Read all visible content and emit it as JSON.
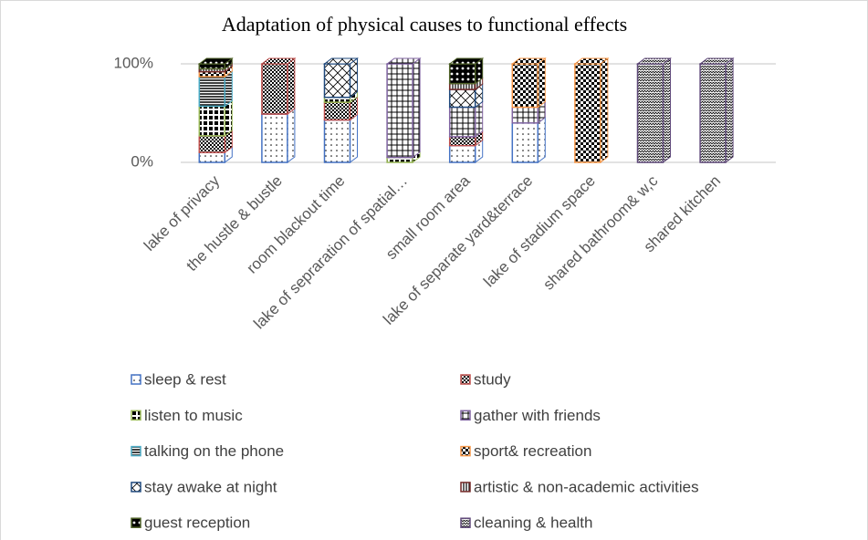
{
  "chart_data": {
    "type": "stacked_bar",
    "title": "Adaptation of physical causes to functional effects",
    "categories": [
      "lake of privacy",
      "the hustle & bustle",
      "room blackout  time",
      "lake of sepraration of spatial…",
      "small room area",
      "lake of separate yard&terrace",
      "lake of stadium space",
      "shared bathroom& w,c",
      "shared kitchen"
    ],
    "series": [
      {
        "name": "sleep & rest",
        "color": "#4472c4",
        "values": [
          10,
          49,
          43,
          0,
          17,
          40,
          0,
          0,
          0
        ]
      },
      {
        "name": " study",
        "color": "#c0504d",
        "values": [
          17,
          51,
          18,
          0,
          9,
          0,
          0,
          0,
          0
        ]
      },
      {
        "name": "listen to music",
        "color": "#9bbb59",
        "values": [
          30,
          0,
          5,
          5,
          0,
          0,
          0,
          0,
          0
        ]
      },
      {
        "name": "gather with friends",
        "color": "#8064a2",
        "values": [
          0,
          0,
          0,
          95,
          30,
          16,
          0,
          0,
          0
        ]
      },
      {
        "name": "talking on the phone",
        "color": "#4bacc6",
        "values": [
          30,
          0,
          0,
          0,
          0,
          0,
          0,
          0,
          0
        ]
      },
      {
        "name": "sport& recreation",
        "color": "#f79646",
        "values": [
          5,
          0,
          0,
          0,
          0,
          44,
          100,
          0,
          0
        ]
      },
      {
        "name": "stay awake at night",
        "color": "#1f497d",
        "values": [
          0,
          0,
          34,
          0,
          18,
          0,
          0,
          0,
          0
        ]
      },
      {
        "name": "artistic & non-academic activities",
        "color": "#772c2a",
        "values": [
          3,
          0,
          0,
          0,
          6,
          0,
          0,
          0,
          0
        ]
      },
      {
        "name": "guest reception",
        "color": "#4f6228",
        "values": [
          5,
          0,
          0,
          0,
          20,
          0,
          0,
          0,
          0
        ]
      },
      {
        "name": "cleaning & health",
        "color": "#604a7b",
        "values": [
          0,
          0,
          0,
          0,
          0,
          0,
          0,
          100,
          100
        ]
      }
    ],
    "ylim": [
      0,
      100
    ],
    "yticks": [
      {
        "value": 0,
        "label": "0%"
      },
      {
        "value": 100,
        "label": "100%"
      }
    ],
    "grid": true,
    "legend": "bottom"
  }
}
